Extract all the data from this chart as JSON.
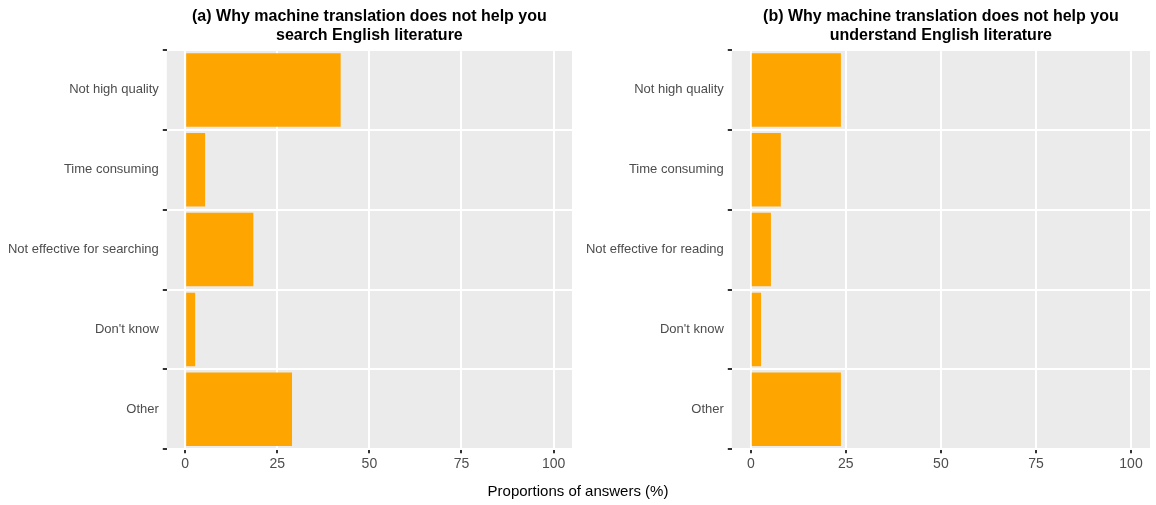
{
  "chart_data": [
    {
      "type": "bar",
      "orientation": "horizontal",
      "title": "(a) Why machine translation does not help you search English literature",
      "xlabel": "Proportions of answers (%)",
      "categories": [
        "Not high quality",
        "Time consuming",
        "Not effective for searching",
        "Don't know",
        "Other"
      ],
      "values": [
        42.2,
        5.4,
        18.5,
        2.7,
        29.0
      ],
      "color": "#ffa500",
      "xlim": [
        -5,
        105
      ],
      "xticks": [
        0,
        25,
        50,
        75,
        100
      ],
      "grid": true
    },
    {
      "type": "bar",
      "orientation": "horizontal",
      "title": "(b) Why machine translation does not help you understand English literature",
      "categories": [
        "Not high quality",
        "Time consuming",
        "Not effective for reading",
        "Don't know",
        "Other"
      ],
      "values": [
        23.7,
        7.9,
        5.3,
        2.7,
        23.7
      ],
      "color": "#ffa500",
      "xlim": [
        -5,
        105
      ],
      "xticks": [
        0,
        25,
        50,
        75,
        100
      ],
      "grid": true
    }
  ]
}
